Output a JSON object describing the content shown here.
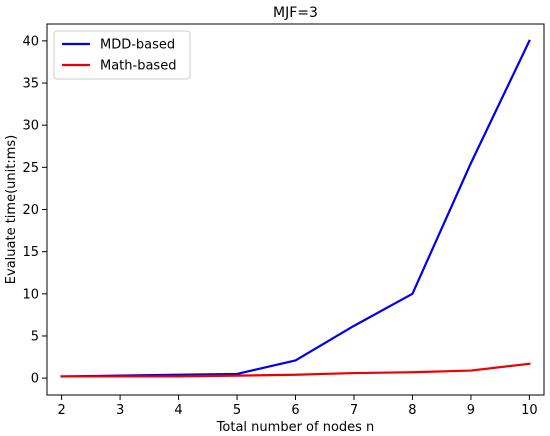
{
  "chart_data": {
    "type": "line",
    "title": "MJF=3",
    "xlabel": "Total number of nodes n",
    "ylabel": "Evaluate time(unit:ms)",
    "x": [
      2,
      3,
      4,
      5,
      6,
      7,
      8,
      9,
      10
    ],
    "xlim": [
      1.75,
      10.25
    ],
    "ylim": [
      -2,
      42
    ],
    "xticks": [
      2,
      3,
      4,
      5,
      6,
      7,
      8,
      9,
      10
    ],
    "yticks": [
      0,
      5,
      10,
      15,
      20,
      25,
      30,
      35,
      40
    ],
    "grid": false,
    "legend_position": "top-left",
    "series": [
      {
        "name": "MDD-based",
        "color": "#0000ee",
        "values": [
          0.2,
          0.3,
          0.4,
          0.5,
          2.1,
          6.2,
          10.0,
          25.5,
          40.0
        ]
      },
      {
        "name": "Math-based",
        "color": "#ee0000",
        "values": [
          0.2,
          0.2,
          0.2,
          0.3,
          0.4,
          0.6,
          0.7,
          0.9,
          1.7
        ]
      }
    ]
  }
}
